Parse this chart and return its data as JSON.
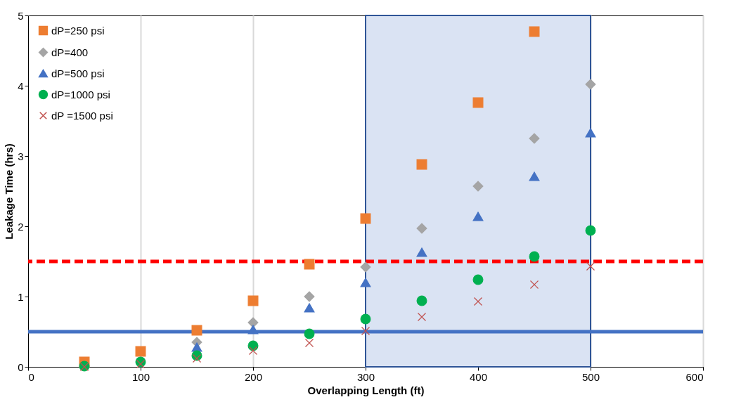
{
  "chart_data": {
    "type": "scatter",
    "xlabel": "Overlapping Length (ft)",
    "ylabel": "Leakage Time (hrs)",
    "xlim": [
      0,
      600
    ],
    "xticks": [
      0,
      100,
      200,
      300,
      400,
      500,
      600
    ],
    "ylim": [
      0,
      5
    ],
    "yticks": [
      0,
      1,
      2,
      3,
      4,
      5
    ],
    "grid": "x",
    "legend": "top left",
    "x": [
      50,
      100,
      150,
      200,
      250,
      300,
      350,
      400,
      450,
      500
    ],
    "series": [
      {
        "name": "dP=250 psi",
        "color": "#ed7d31",
        "marker": "square",
        "values": [
          0.07,
          0.22,
          0.52,
          0.94,
          1.46,
          2.11,
          2.88,
          3.76,
          4.77,
          null
        ]
      },
      {
        "name": "dP=400",
        "color": "#a5a5a5",
        "marker": "diamond",
        "values": [
          null,
          null,
          0.35,
          0.63,
          1.0,
          1.42,
          1.97,
          2.57,
          3.25,
          4.02
        ]
      },
      {
        "name": "dP=500 psi",
        "color": "#4472c4",
        "marker": "triangle",
        "values": [
          null,
          null,
          0.28,
          0.53,
          0.84,
          1.2,
          1.63,
          2.14,
          2.71,
          3.33
        ]
      },
      {
        "name": "dP=1000 psi",
        "color": "#00b050",
        "marker": "circle",
        "values": [
          0.01,
          0.07,
          0.16,
          0.3,
          0.47,
          0.68,
          0.94,
          1.24,
          1.57,
          1.94
        ]
      },
      {
        "name": "dP =1500 psi",
        "color": "#c0504d",
        "marker": "cross",
        "values": [
          0.0,
          0.04,
          0.12,
          0.23,
          0.34,
          0.51,
          0.71,
          0.93,
          1.17,
          1.43
        ]
      }
    ],
    "ref_lines": [
      {
        "axis": "y",
        "value": 1.5,
        "color": "#ff0000",
        "line_style": "dashed"
      },
      {
        "axis": "y",
        "value": 0.5,
        "color": "#4472c4",
        "line_style": "solid"
      }
    ],
    "bands": [
      {
        "axis": "x",
        "from": 300,
        "to": 500,
        "color": "#dae3f3"
      }
    ]
  }
}
